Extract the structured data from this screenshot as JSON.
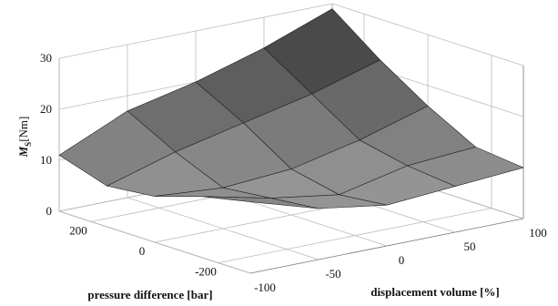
{
  "chart_data": {
    "type": "surface",
    "xlabel": "displacement volume [%]",
    "ylabel": "pressure difference [bar]",
    "zlabel": {
      "symbol": "M",
      "subscript": "S",
      "unit": "[Nm]"
    },
    "x": [
      -100,
      -50,
      0,
      50,
      100
    ],
    "y": [
      -300,
      -150,
      0,
      150,
      300
    ],
    "z": [
      [
        14,
        10,
        8,
        9,
        10
      ],
      [
        12,
        9,
        7,
        10,
        11
      ],
      [
        9,
        8,
        9,
        12,
        16
      ],
      [
        8,
        12,
        15,
        18,
        22
      ],
      [
        11,
        17,
        20,
        24,
        29
      ]
    ],
    "xlim": [
      -100,
      100
    ],
    "ylim": [
      -300,
      300
    ],
    "zlim": [
      0,
      30
    ],
    "xticks": [
      -100,
      -50,
      0,
      50,
      100
    ],
    "yticks": [
      -200,
      0,
      200
    ],
    "zticks": [
      0,
      10,
      20,
      30
    ],
    "grid": true
  }
}
